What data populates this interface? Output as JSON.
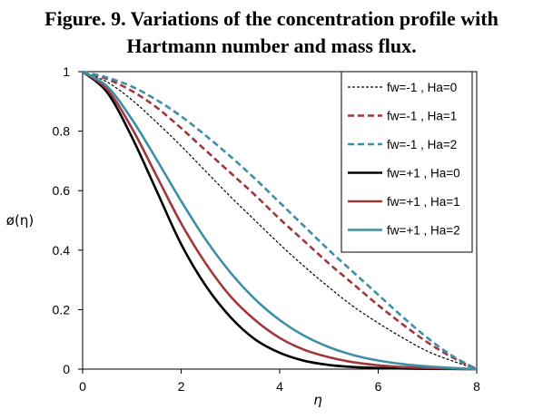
{
  "chart_data": {
    "type": "line",
    "title_line1": "Figure. 9. Variations of the concentration profile with",
    "title_line2": "Hartmann number and mass flux.",
    "xlabel": "η",
    "ylabel": "ø(η)",
    "xlim": [
      0,
      8
    ],
    "ylim": [
      0,
      1
    ],
    "xticks": [
      "0",
      "2",
      "4",
      "6",
      "8"
    ],
    "yticks": [
      "0",
      "0.2",
      "0.4",
      "0.6",
      "0.8",
      "1"
    ],
    "legend_position": "top-right",
    "x": [
      0,
      0.5,
      1,
      1.5,
      2,
      2.5,
      3,
      3.5,
      4,
      4.5,
      5,
      5.5,
      6,
      6.5,
      7,
      7.5,
      8
    ],
    "series": [
      {
        "name": "fw=-1 , Ha=0",
        "color": "#000000",
        "dash": "dotted",
        "values": [
          1,
          0.965,
          0.905,
          0.83,
          0.75,
          0.665,
          0.58,
          0.5,
          0.42,
          0.345,
          0.275,
          0.21,
          0.155,
          0.105,
          0.06,
          0.028,
          0
        ]
      },
      {
        "name": "fw=-1 , Ha=1",
        "color": "#A0373C",
        "dash": "dashed",
        "values": [
          1,
          0.975,
          0.935,
          0.88,
          0.81,
          0.735,
          0.66,
          0.585,
          0.505,
          0.43,
          0.355,
          0.285,
          0.215,
          0.15,
          0.09,
          0.04,
          0
        ]
      },
      {
        "name": "fw=-1 , Ha=2",
        "color": "#3D8FA6",
        "dash": "dashed",
        "values": [
          1,
          0.98,
          0.95,
          0.905,
          0.85,
          0.785,
          0.715,
          0.64,
          0.56,
          0.48,
          0.4,
          0.325,
          0.25,
          0.175,
          0.105,
          0.045,
          0
        ]
      },
      {
        "name": "fw=+1 , Ha=0",
        "color": "#000000",
        "dash": "solid",
        "values": [
          1,
          0.93,
          0.78,
          0.6,
          0.42,
          0.28,
          0.175,
          0.1,
          0.055,
          0.028,
          0.014,
          0.007,
          0.004,
          0.002,
          0.001,
          0.0005,
          0
        ]
      },
      {
        "name": "fw=+1 , Ha=1",
        "color": "#A0373C",
        "dash": "solid",
        "values": [
          1,
          0.94,
          0.81,
          0.65,
          0.49,
          0.355,
          0.245,
          0.165,
          0.105,
          0.065,
          0.04,
          0.023,
          0.013,
          0.007,
          0.004,
          0.0015,
          0
        ]
      },
      {
        "name": "fw=+1 , Ha=2",
        "color": "#3D8FA6",
        "dash": "solid",
        "values": [
          1,
          0.95,
          0.84,
          0.705,
          0.565,
          0.435,
          0.325,
          0.235,
          0.165,
          0.112,
          0.074,
          0.047,
          0.029,
          0.017,
          0.009,
          0.004,
          0
        ]
      }
    ]
  }
}
